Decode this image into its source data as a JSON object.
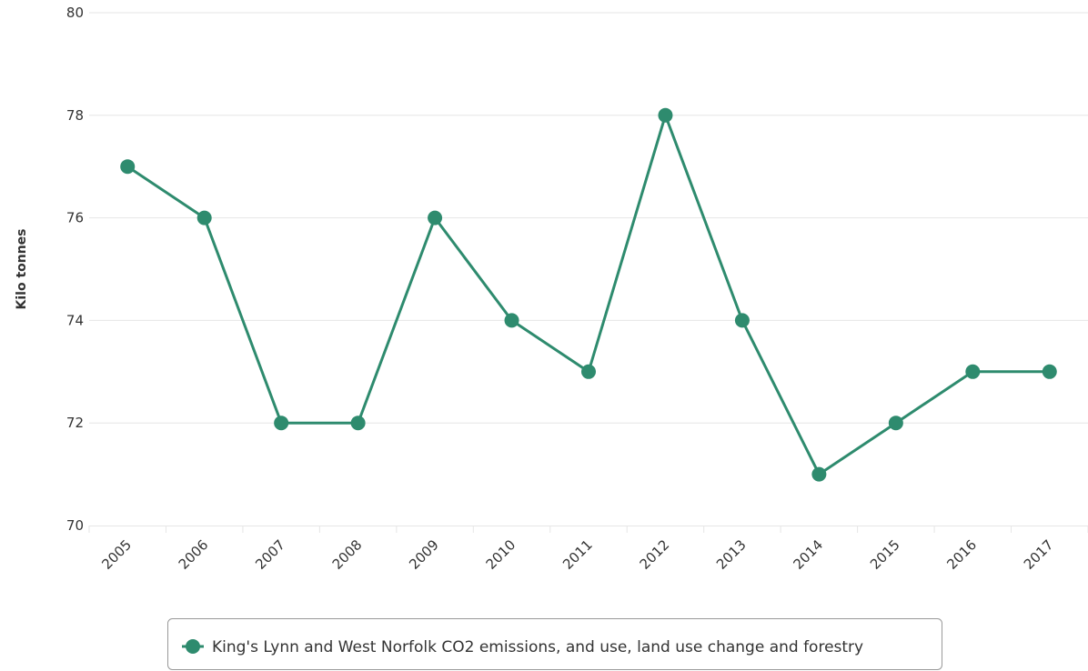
{
  "chart_data": {
    "type": "line",
    "title": "",
    "xlabel": "",
    "ylabel": "Kilo tonnes",
    "ylim": [
      70,
      80
    ],
    "yticks": [
      70,
      72,
      74,
      76,
      78,
      80
    ],
    "grid": true,
    "legend_position": "bottom",
    "categories": [
      "2005",
      "2006",
      "2007",
      "2008",
      "2009",
      "2010",
      "2011",
      "2012",
      "2013",
      "2014",
      "2015",
      "2016",
      "2017"
    ],
    "series": [
      {
        "name": "King's Lynn and West Norfolk CO2 emissions, and use, land use change and forestry",
        "color": "#2e8b6e",
        "values": [
          77,
          76,
          72,
          72,
          76,
          74,
          73,
          78,
          74,
          71,
          72,
          73,
          73
        ]
      }
    ]
  }
}
